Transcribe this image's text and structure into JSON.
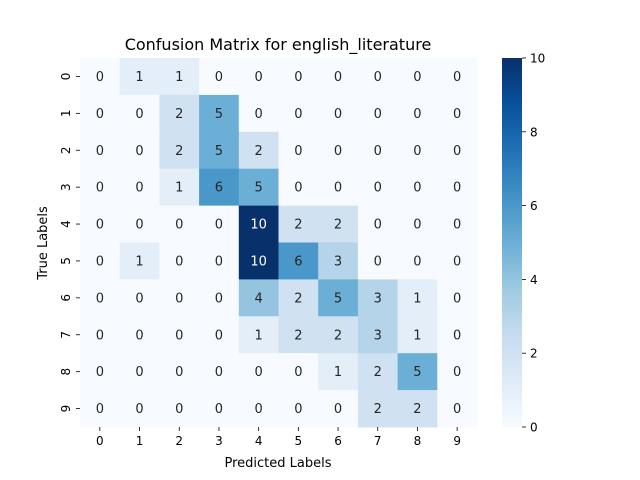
{
  "chart_data": {
    "type": "heatmap",
    "title": "Confusion Matrix for english_literature",
    "xlabel": "Predicted Labels",
    "ylabel": "True Labels",
    "x_categories": [
      "0",
      "1",
      "2",
      "3",
      "4",
      "5",
      "6",
      "7",
      "8",
      "9"
    ],
    "y_categories": [
      "0",
      "1",
      "2",
      "3",
      "4",
      "5",
      "6",
      "7",
      "8",
      "9"
    ],
    "values": [
      [
        0,
        1,
        1,
        0,
        0,
        0,
        0,
        0,
        0,
        0
      ],
      [
        0,
        0,
        2,
        5,
        0,
        0,
        0,
        0,
        0,
        0
      ],
      [
        0,
        0,
        2,
        5,
        2,
        0,
        0,
        0,
        0,
        0
      ],
      [
        0,
        0,
        1,
        6,
        5,
        0,
        0,
        0,
        0,
        0
      ],
      [
        0,
        0,
        0,
        0,
        10,
        2,
        2,
        0,
        0,
        0
      ],
      [
        0,
        1,
        0,
        0,
        10,
        6,
        3,
        0,
        0,
        0
      ],
      [
        0,
        0,
        0,
        0,
        4,
        2,
        5,
        3,
        1,
        0
      ],
      [
        0,
        0,
        0,
        0,
        1,
        2,
        2,
        3,
        1,
        0
      ],
      [
        0,
        0,
        0,
        0,
        0,
        0,
        1,
        2,
        5,
        0
      ],
      [
        0,
        0,
        0,
        0,
        0,
        0,
        0,
        2,
        2,
        0
      ]
    ],
    "colorbar": {
      "min": 0,
      "max": 10,
      "ticks": [
        0,
        2,
        4,
        6,
        8,
        10
      ]
    },
    "colormap": [
      "#f7fbff",
      "#deebf7",
      "#c6dbef",
      "#9ecae1",
      "#6baed6",
      "#4292c6",
      "#2171b5",
      "#08519c",
      "#08306b"
    ],
    "annotation_colors": {
      "dark": "#262626",
      "light": "#ffffff"
    }
  }
}
